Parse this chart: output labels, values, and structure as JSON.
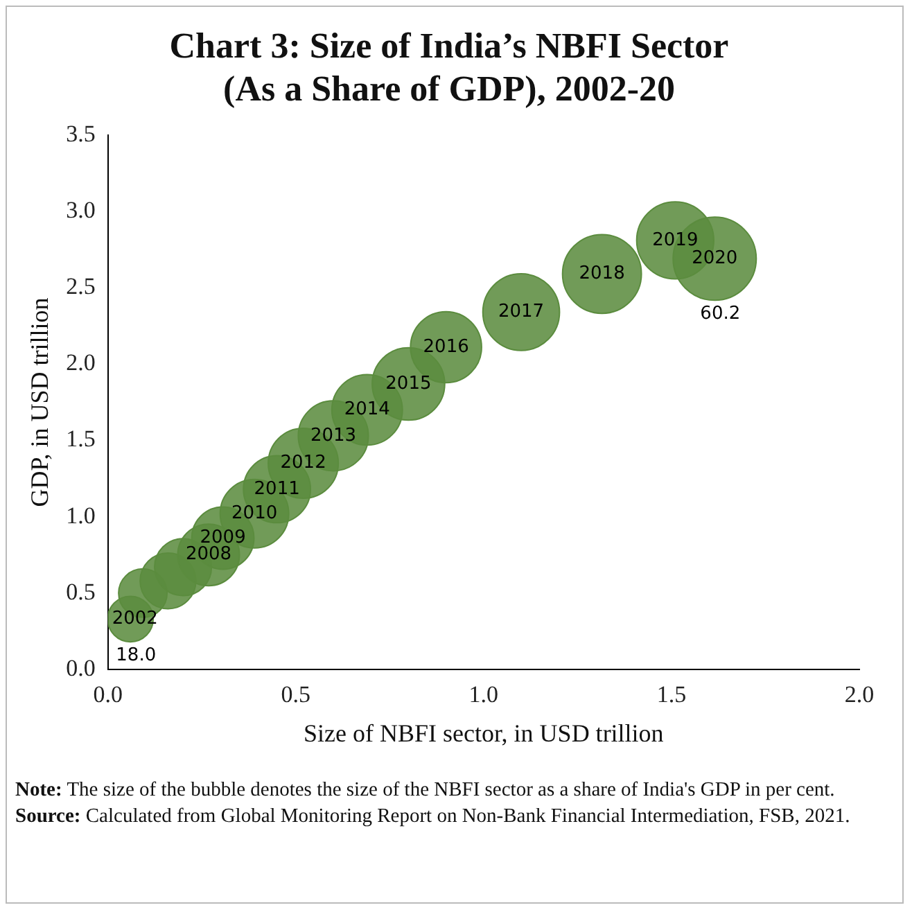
{
  "chart_data": {
    "type": "bubble",
    "title": "Chart 3: Size of India’s NBFI Sector\n(As a Share of GDP), 2002-20",
    "xlabel": "Size of NBFI sector, in USD trillion",
    "ylabel": "GDP, in USD trillion",
    "x": [
      0.06,
      0.093,
      0.16,
      0.2,
      0.268,
      0.306,
      0.39,
      0.45,
      0.52,
      0.6,
      0.69,
      0.8,
      0.9,
      1.1,
      1.315,
      1.51,
      1.615
    ],
    "series": [
      {
        "color": "#5b8c3e",
        "values": [
          0.33,
          0.5,
          0.58,
          0.67,
          0.75,
          0.86,
          1.02,
          1.18,
          1.35,
          1.53,
          1.7,
          1.87,
          2.11,
          2.34,
          2.59,
          2.81,
          2.69
        ],
        "sizes": [
          0.3,
          0.34,
          0.45,
          0.47,
          0.55,
          0.56,
          0.68,
          0.65,
          0.71,
          0.71,
          0.72,
          0.76,
          0.73,
          0.85,
          0.9,
          0.86,
          1
        ]
      }
    ],
    "xlim": [
      0,
      2
    ],
    "xticks": [
      {
        "value": 0,
        "label": "0.0"
      },
      0.5,
      {
        "value": 1,
        "label": "1.0"
      },
      1.5,
      {
        "value": 2,
        "label": "2.0"
      }
    ],
    "ylim": [
      0,
      3.5
    ],
    "yticks": [
      {
        "value": 0,
        "label": "0.0"
      },
      0.5,
      {
        "value": 1,
        "label": "1.0"
      },
      1.5,
      {
        "value": 2,
        "label": "2.0"
      },
      2.5,
      {
        "value": 3,
        "label": "3.0"
      },
      3.5
    ],
    "grid": false,
    "legend": false,
    "annotations": [
      {
        "text": "2002",
        "x": 0.06,
        "y": 0.33
      },
      {
        "text": "2008",
        "x": 0.268,
        "y": 0.75
      },
      {
        "text": "2009",
        "x": 0.306,
        "y": 0.86
      },
      {
        "text": "2010",
        "x": 0.39,
        "y": 1.02
      },
      {
        "text": "2011",
        "x": 0.45,
        "y": 1.18
      },
      {
        "text": "2012",
        "x": 0.52,
        "y": 1.35
      },
      {
        "text": "2013",
        "x": 0.6,
        "y": 1.53
      },
      {
        "text": "2014",
        "x": 0.69,
        "y": 1.7
      },
      {
        "text": "2015",
        "x": 0.8,
        "y": 1.87
      },
      {
        "text": "2016",
        "x": 0.9,
        "y": 2.11
      },
      {
        "text": "2017",
        "x": 1.1,
        "y": 2.34
      },
      {
        "text": "2018",
        "x": 1.315,
        "y": 2.59
      },
      {
        "text": "2019",
        "x": 1.51,
        "y": 2.81
      },
      {
        "text": "2020",
        "x": 1.615,
        "y": 2.69
      },
      {
        "text": "18.0",
        "x": 0.06,
        "y": 0.33
      },
      {
        "text": "60.2",
        "x": 1.615,
        "y": 2.69
      },
      "Note: The size of the bubble denotes the size of the NBFI sector as a share of India's GDP in per cent.",
      "Source: Calculated from Global Monitoring Report on Non-Bank Financial Intermediation, FSB, 2021."
    ]
  }
}
